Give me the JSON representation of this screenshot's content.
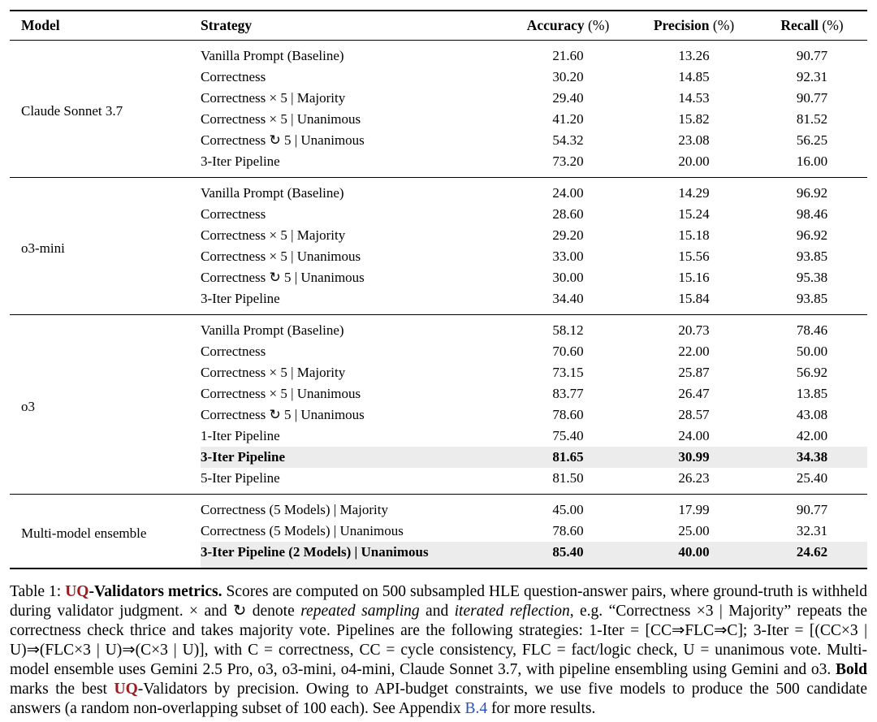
{
  "colors": {
    "highlight": "#ececec",
    "logo_red": "#9d1b1e",
    "link_blue": "#2a52be"
  },
  "table": {
    "header": [
      {
        "label": "Model",
        "suffix": ""
      },
      {
        "label": "Strategy",
        "suffix": ""
      },
      {
        "label": "Accuracy",
        "suffix": " (%)"
      },
      {
        "label": "Precision",
        "suffix": " (%)"
      },
      {
        "label": "Recall",
        "suffix": " (%)"
      }
    ],
    "groups": [
      {
        "model": "Claude Sonnet 3.7",
        "rows": [
          {
            "strategy": "Vanilla Prompt (Baseline)",
            "accuracy": "21.60",
            "precision": "13.26",
            "recall": "90.77",
            "bold": false,
            "highlight": false
          },
          {
            "strategy": "Correctness",
            "accuracy": "30.20",
            "precision": "14.85",
            "recall": "92.31",
            "bold": false,
            "highlight": false
          },
          {
            "strategy": "Correctness × 5 | Majority",
            "accuracy": "29.40",
            "precision": "14.53",
            "recall": "90.77",
            "bold": false,
            "highlight": false
          },
          {
            "strategy": "Correctness × 5 | Unanimous",
            "accuracy": "41.20",
            "precision": "15.82",
            "recall": "81.52",
            "bold": false,
            "highlight": false
          },
          {
            "strategy": "Correctness ↻ 5 | Unanimous",
            "accuracy": "54.32",
            "precision": "23.08",
            "recall": "56.25",
            "bold": false,
            "highlight": false
          },
          {
            "strategy": "3-Iter Pipeline",
            "accuracy": "73.20",
            "precision": "20.00",
            "recall": "16.00",
            "bold": false,
            "highlight": false
          }
        ]
      },
      {
        "model": "o3-mini",
        "rows": [
          {
            "strategy": "Vanilla Prompt (Baseline)",
            "accuracy": "24.00",
            "precision": "14.29",
            "recall": "96.92",
            "bold": false,
            "highlight": false
          },
          {
            "strategy": "Correctness",
            "accuracy": "28.60",
            "precision": "15.24",
            "recall": "98.46",
            "bold": false,
            "highlight": false
          },
          {
            "strategy": "Correctness × 5 | Majority",
            "accuracy": "29.20",
            "precision": "15.18",
            "recall": "96.92",
            "bold": false,
            "highlight": false
          },
          {
            "strategy": "Correctness × 5 | Unanimous",
            "accuracy": "33.00",
            "precision": "15.56",
            "recall": "93.85",
            "bold": false,
            "highlight": false
          },
          {
            "strategy": "Correctness ↻ 5 | Unanimous",
            "accuracy": "30.00",
            "precision": "15.16",
            "recall": "95.38",
            "bold": false,
            "highlight": false
          },
          {
            "strategy": "3-Iter Pipeline",
            "accuracy": "34.40",
            "precision": "15.84",
            "recall": "93.85",
            "bold": false,
            "highlight": false
          }
        ]
      },
      {
        "model": "o3",
        "rows": [
          {
            "strategy": "Vanilla Prompt (Baseline)",
            "accuracy": "58.12",
            "precision": "20.73",
            "recall": "78.46",
            "bold": false,
            "highlight": false
          },
          {
            "strategy": "Correctness",
            "accuracy": "70.60",
            "precision": "22.00",
            "recall": "50.00",
            "bold": false,
            "highlight": false
          },
          {
            "strategy": "Correctness × 5 | Majority",
            "accuracy": "73.15",
            "precision": "25.87",
            "recall": "56.92",
            "bold": false,
            "highlight": false
          },
          {
            "strategy": "Correctness × 5 | Unanimous",
            "accuracy": "83.77",
            "precision": "26.47",
            "recall": "13.85",
            "bold": false,
            "highlight": false
          },
          {
            "strategy": "Correctness ↻ 5 | Unanimous",
            "accuracy": "78.60",
            "precision": "28.57",
            "recall": "43.08",
            "bold": false,
            "highlight": false
          },
          {
            "strategy": "1-Iter Pipeline",
            "accuracy": "75.40",
            "precision": "24.00",
            "recall": "42.00",
            "bold": false,
            "highlight": false
          },
          {
            "strategy": "3-Iter Pipeline",
            "accuracy": "81.65",
            "precision": "30.99",
            "recall": "34.38",
            "bold": true,
            "highlight": true
          },
          {
            "strategy": "5-Iter Pipeline",
            "accuracy": "81.50",
            "precision": "26.23",
            "recall": "25.40",
            "bold": false,
            "highlight": false
          }
        ]
      },
      {
        "model": "Multi-model ensemble",
        "rows": [
          {
            "strategy": "Correctness (5 Models) | Majority",
            "accuracy": "45.00",
            "precision": "17.99",
            "recall": "90.77",
            "bold": false,
            "highlight": false
          },
          {
            "strategy": "Correctness (5 Models) | Unanimous",
            "accuracy": "78.60",
            "precision": "25.00",
            "recall": "32.31",
            "bold": false,
            "highlight": false
          },
          {
            "strategy": "3-Iter Pipeline (2 Models) | Unanimous",
            "accuracy": "85.40",
            "precision": "40.00",
            "recall": "24.62",
            "bold": true,
            "highlight": true
          }
        ]
      }
    ]
  },
  "caption": {
    "segments": [
      {
        "text": "Table 1: ",
        "style": "normal"
      },
      {
        "text": "UQ",
        "style": "logo"
      },
      {
        "text": "-Validators metrics.",
        "style": "bold"
      },
      {
        "text": " Scores are computed on 500 subsampled HLE question-answer pairs, where ground-truth is withheld during validator judgment. × and ↻ denote ",
        "style": "normal"
      },
      {
        "text": "repeated sampling",
        "style": "italic"
      },
      {
        "text": " and ",
        "style": "normal"
      },
      {
        "text": "iterated reflection",
        "style": "italic"
      },
      {
        "text": ", e.g. “Correctness ×3 | Majority” repeats the correctness check thrice and takes majority vote. Pipelines are the following strategies: 1-Iter = [CC⇒FLC⇒C]; 3-Iter = [(CC×3 | U)⇒(FLC×3 | U)⇒(C×3 | U)], with C = correctness, CC = cycle consistency, FLC = fact/logic check, U = unanimous vote. Multi-model ensemble uses Gemini 2.5 Pro, o3, o3-mini, o4-mini, Claude Sonnet 3.7, with pipeline ensembling using Gemini and o3. ",
        "style": "normal"
      },
      {
        "text": "Bold",
        "style": "bold"
      },
      {
        "text": " marks the best ",
        "style": "normal"
      },
      {
        "text": "UQ",
        "style": "logo"
      },
      {
        "text": "-Validators by precision. Owing to API-budget constraints, we use five models to produce the 500 candidate answers (a random non-overlapping subset of 100 each). See Appendix ",
        "style": "normal"
      },
      {
        "text": "B.4",
        "style": "link"
      },
      {
        "text": " for more results.",
        "style": "normal"
      }
    ]
  }
}
